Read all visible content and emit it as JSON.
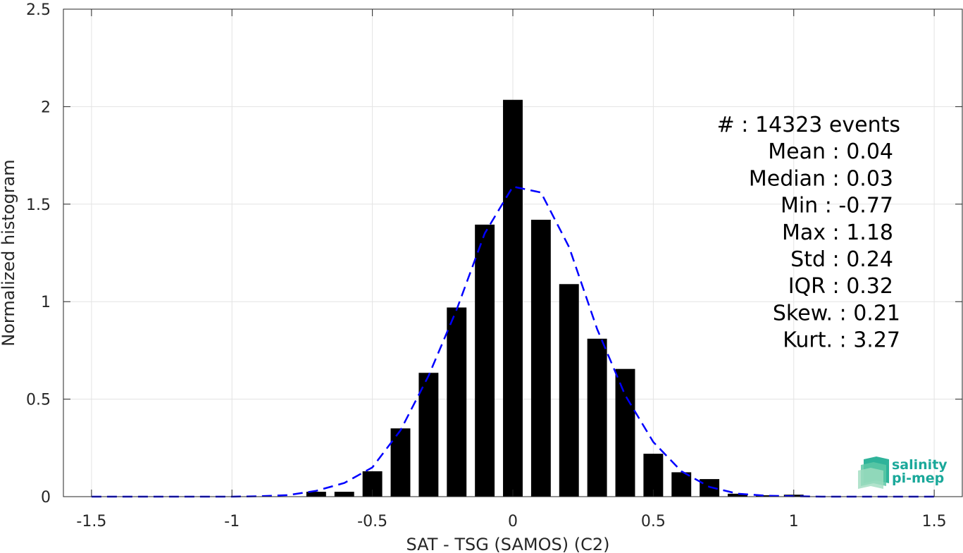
{
  "chart_data": {
    "type": "bar",
    "xlabel": "SAT - TSG (SAMOS) (C2)",
    "ylabel": "Normalized histogram",
    "xlim": [
      -1.6,
      1.6
    ],
    "ylim": [
      0,
      2.5
    ],
    "grid": true,
    "bar_width": 0.07,
    "x_ticks": [
      -1.5,
      -1,
      -0.5,
      0,
      0.5,
      1,
      1.5
    ],
    "x_tick_labels": [
      "-1.5",
      "-1",
      "-0.5",
      "0",
      "0.5",
      "1",
      "1.5"
    ],
    "y_ticks": [
      0,
      0.5,
      1,
      1.5,
      2,
      2.5
    ],
    "y_tick_labels": [
      "0",
      "0.5",
      "1",
      "1.5",
      "2",
      "2.5"
    ],
    "bars": {
      "x": [
        -0.7,
        -0.6,
        -0.5,
        -0.4,
        -0.3,
        -0.2,
        -0.1,
        0,
        0.1,
        0.2,
        0.3,
        0.4,
        0.5,
        0.6,
        0.7,
        0.8,
        0.9,
        1.0
      ],
      "values": [
        0.025,
        0.025,
        0.13,
        0.35,
        0.635,
        0.97,
        1.395,
        2.035,
        1.42,
        1.09,
        0.81,
        0.655,
        0.22,
        0.125,
        0.09,
        0.015,
        0.007,
        0.01
      ],
      "color": "#000000"
    },
    "fit_curve": {
      "style": "dashed",
      "color": "#0000ff",
      "x": [
        -1.5,
        -1.4,
        -1.3,
        -1.2,
        -1.1,
        -1.0,
        -0.9,
        -0.8,
        -0.7,
        -0.6,
        -0.5,
        -0.4,
        -0.3,
        -0.2,
        -0.1,
        0.0,
        0.1,
        0.2,
        0.3,
        0.4,
        0.5,
        0.6,
        0.7,
        0.8,
        0.9,
        1.0,
        1.1,
        1.2,
        1.3,
        1.4,
        1.5
      ],
      "y": [
        0,
        0,
        0,
        0,
        0,
        0,
        0.002,
        0.008,
        0.03,
        0.07,
        0.15,
        0.34,
        0.62,
        0.96,
        1.35,
        1.59,
        1.56,
        1.28,
        0.86,
        0.52,
        0.28,
        0.13,
        0.05,
        0.015,
        0.005,
        0.002,
        0,
        0,
        0,
        0,
        0
      ]
    },
    "annotations": [
      "#  : 14323 events",
      "Mean : 0.04",
      "Median : 0.03",
      "Min : -0.77",
      "Max : 1.18",
      "Std : 0.24",
      "IQR : 0.32",
      "Skew. : 0.21",
      "Kurt. : 3.27"
    ]
  },
  "logo": {
    "line1": "salinity",
    "line2": "pi-mep",
    "color": "#1aa89a"
  }
}
